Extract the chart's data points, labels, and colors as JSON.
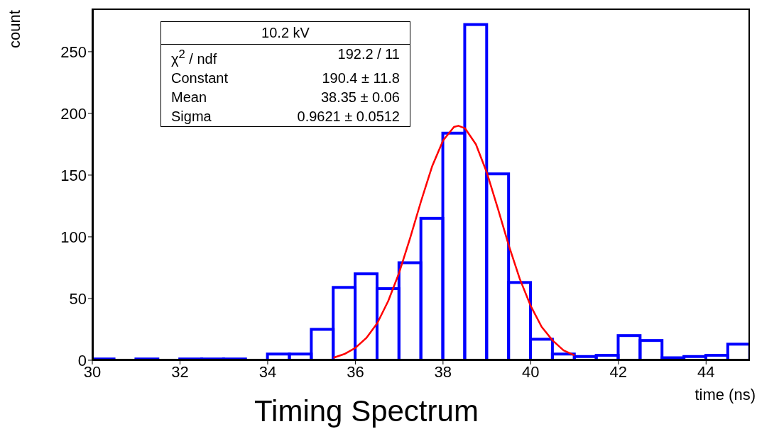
{
  "chart_data": {
    "type": "histogram",
    "title": "Timing Spectrum",
    "xlabel": "time (ns)",
    "ylabel": "count",
    "annotations": [
      "10.2 kV",
      "χ$^{2}$ / ndf",
      "192.2 / 11",
      "Constant",
      "190.4 ± 11.8",
      "Mean",
      "38.35 ± 0.06",
      "Sigma",
      "0.9621 ± 0.0512"
    ],
    "bins": [
      30,
      30.5,
      31,
      31.5,
      32,
      32.5,
      33,
      33.5,
      34,
      34.5,
      35,
      35.5,
      36,
      36.5,
      37,
      37.5,
      38,
      38.5,
      39,
      39.5,
      40,
      40.5,
      41,
      41.5,
      42,
      42.5,
      43,
      43.5,
      44,
      44.5,
      45
    ],
    "series": [
      {
        "color": "#0000ff",
        "values": [
          1,
          0,
          1,
          0,
          1,
          1,
          1,
          0,
          5,
          5,
          25,
          59,
          70,
          58,
          79,
          115,
          184,
          272,
          151,
          63,
          17,
          5,
          3,
          4,
          20,
          16,
          2,
          3,
          4,
          13
        ]
      },
      {
        "type": "line",
        "color": "#ff0000",
        "x": [
          35.5,
          35.75,
          36,
          36.25,
          36.5,
          36.75,
          37,
          37.25,
          37.5,
          37.75,
          38,
          38.25,
          38.35,
          38.5,
          38.75,
          39,
          39.25,
          39.5,
          39.75,
          40,
          40.25,
          40.5,
          40.75,
          41
        ],
        "values": [
          2,
          5,
          10,
          18,
          30,
          48,
          71,
          99,
          129,
          157,
          178,
          189,
          190,
          188,
          175,
          152,
          123,
          93,
          66,
          44,
          27,
          16,
          8,
          4
        ]
      }
    ],
    "xlim": [
      30,
      45
    ],
    "xticks": [
      30,
      32,
      34,
      36,
      38,
      40,
      42,
      44
    ],
    "ylim": [
      0,
      285
    ],
    "yticks": [
      0,
      50,
      100,
      150,
      200,
      250
    ],
    "grid": false,
    "legend": false,
    "marker": "none"
  }
}
